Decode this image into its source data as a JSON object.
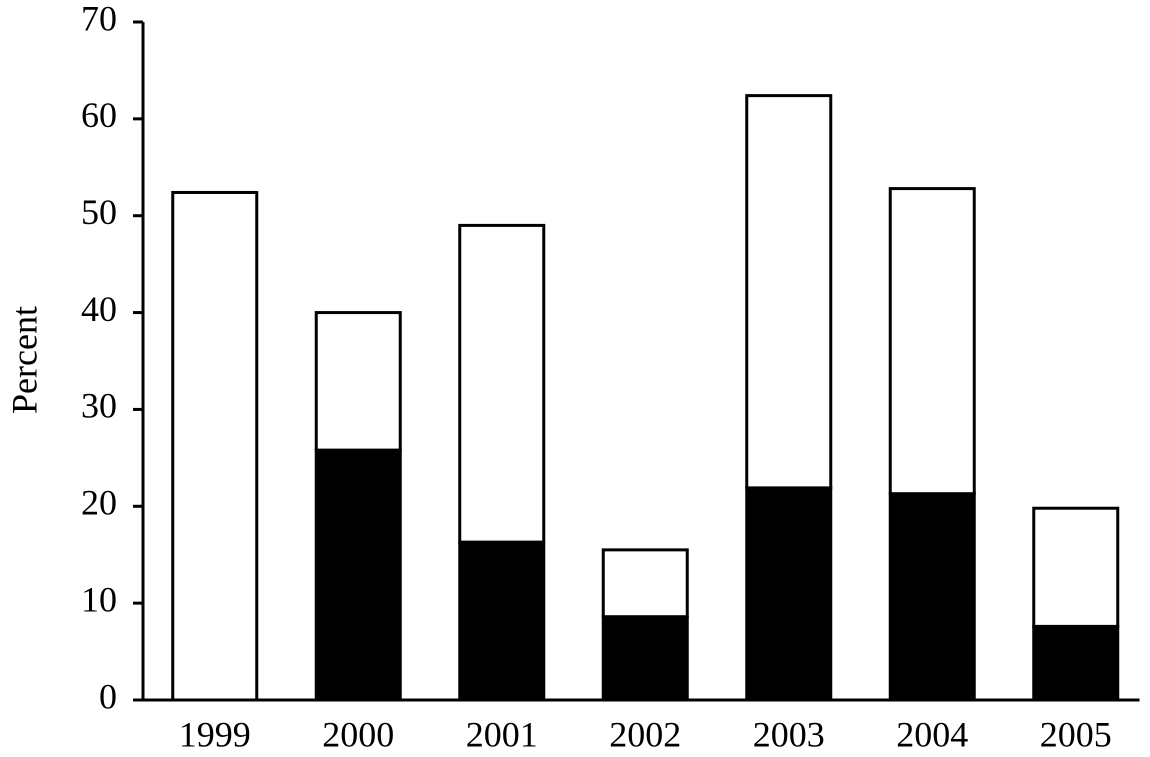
{
  "chart_data": {
    "type": "stacked_bar",
    "y_label": "Percent",
    "categories": [
      "1999",
      "2000",
      "2001",
      "2002",
      "2003",
      "2004",
      "2005"
    ],
    "series": [
      {
        "color": "#000000",
        "values": [
          0,
          25.8,
          16.3,
          8.6,
          21.9,
          21.3,
          7.6
        ]
      },
      {
        "color": "#ffffff",
        "values": [
          52.4,
          14.2,
          32.7,
          6.9,
          40.5,
          31.5,
          12.2
        ]
      }
    ],
    "ylim": [
      0,
      70
    ],
    "yticks": [
      0,
      10,
      20,
      30,
      40,
      50,
      60,
      70
    ],
    "grid": false
  }
}
